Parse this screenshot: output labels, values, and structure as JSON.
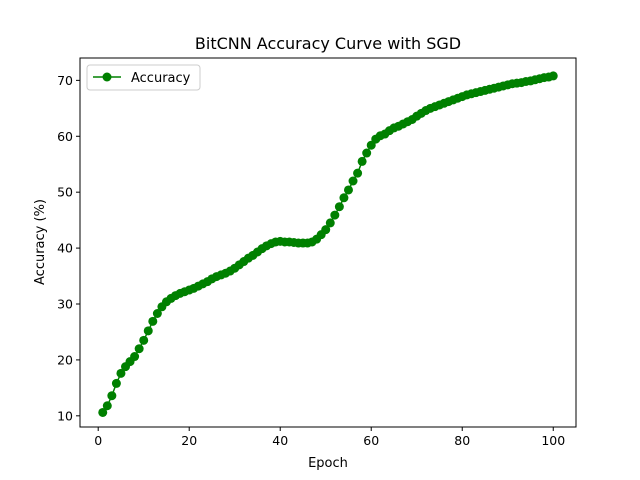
{
  "chart_data": {
    "type": "line",
    "title": "BitCNN Accuracy Curve with SGD",
    "xlabel": "Epoch",
    "ylabel": "Accuracy (%)",
    "xlim": [
      -4,
      105
    ],
    "ylim": [
      8,
      74
    ],
    "xticks": [
      0,
      20,
      40,
      60,
      80,
      100
    ],
    "yticks": [
      10,
      20,
      30,
      40,
      50,
      60,
      70
    ],
    "grid": false,
    "legend_position": "top-left",
    "series": [
      {
        "name": "Accuracy",
        "color": "#008000",
        "marker": "circle",
        "x": [
          1,
          2,
          3,
          4,
          5,
          6,
          7,
          8,
          9,
          10,
          11,
          12,
          13,
          14,
          15,
          16,
          17,
          18,
          19,
          20,
          21,
          22,
          23,
          24,
          25,
          26,
          27,
          28,
          29,
          30,
          31,
          32,
          33,
          34,
          35,
          36,
          37,
          38,
          39,
          40,
          41,
          42,
          43,
          44,
          45,
          46,
          47,
          48,
          49,
          50,
          51,
          52,
          53,
          54,
          55,
          56,
          57,
          58,
          59,
          60,
          61,
          62,
          63,
          64,
          65,
          66,
          67,
          68,
          69,
          70,
          71,
          72,
          73,
          74,
          75,
          76,
          77,
          78,
          79,
          80,
          81,
          82,
          83,
          84,
          85,
          86,
          87,
          88,
          89,
          90,
          91,
          92,
          93,
          94,
          95,
          96,
          97,
          98,
          99,
          100
        ],
        "y": [
          10.6,
          11.8,
          13.6,
          15.8,
          17.6,
          18.8,
          19.7,
          20.6,
          22.0,
          23.5,
          25.2,
          26.9,
          28.3,
          29.5,
          30.4,
          31.0,
          31.5,
          31.9,
          32.2,
          32.5,
          32.8,
          33.2,
          33.6,
          34.0,
          34.5,
          34.9,
          35.2,
          35.5,
          35.9,
          36.4,
          37.0,
          37.6,
          38.2,
          38.7,
          39.3,
          39.9,
          40.4,
          40.8,
          41.1,
          41.2,
          41.1,
          41.1,
          41.0,
          40.9,
          40.9,
          40.9,
          41.1,
          41.6,
          42.4,
          43.3,
          44.5,
          45.9,
          47.4,
          49.0,
          50.4,
          52.0,
          53.4,
          55.5,
          57.0,
          58.4,
          59.5,
          60.1,
          60.4,
          61.0,
          61.5,
          61.8,
          62.2,
          62.6,
          63.0,
          63.6,
          64.1,
          64.6,
          65.0,
          65.3,
          65.6,
          65.9,
          66.2,
          66.5,
          66.8,
          67.1,
          67.4,
          67.6,
          67.8,
          68.0,
          68.2,
          68.4,
          68.6,
          68.8,
          69.0,
          69.2,
          69.4,
          69.5,
          69.6,
          69.8,
          69.9,
          70.1,
          70.3,
          70.5,
          70.6,
          70.8
        ]
      }
    ]
  }
}
